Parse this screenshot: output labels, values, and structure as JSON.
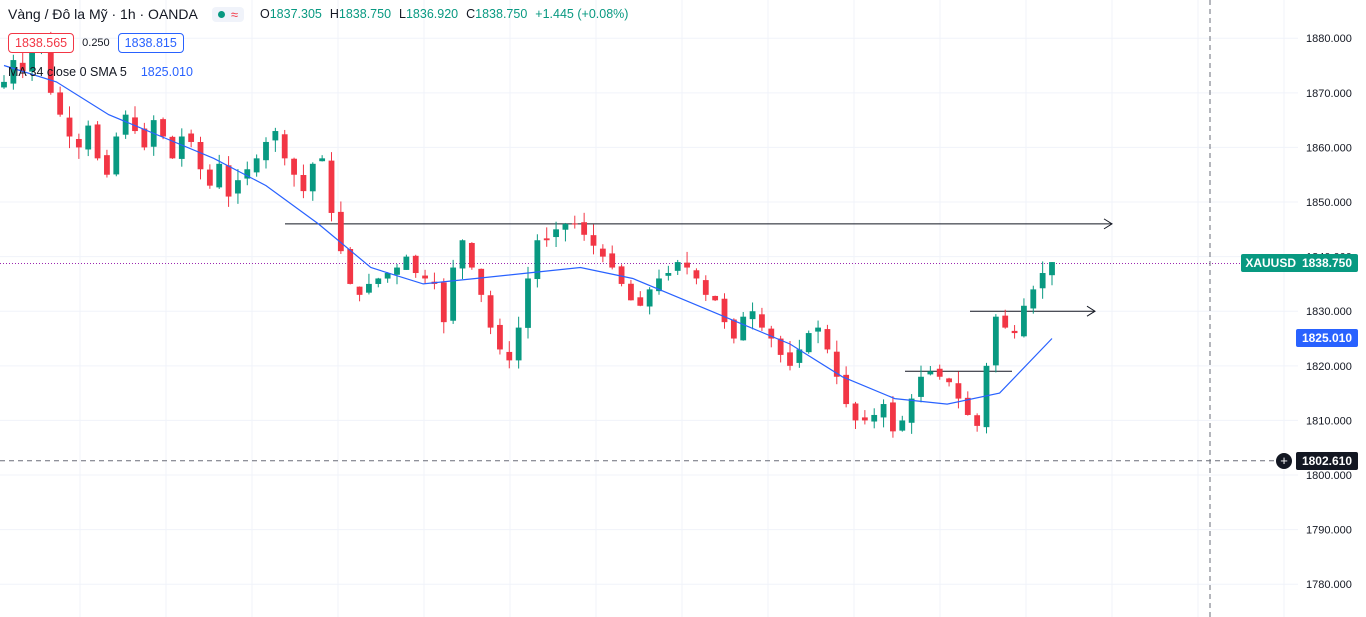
{
  "header": {
    "symbol_title": "Vàng / Đô la Mỹ · 1h · OANDA",
    "ohlc": {
      "open_label": "O",
      "open": "1837.305",
      "high_label": "H",
      "high": "1838.750",
      "low_label": "L",
      "low": "1836.920",
      "close_label": "C",
      "close": "1838.750",
      "change": "+1.445 (+0.08%)"
    },
    "icons": {
      "status": "dot-icon",
      "replay": "wave-icon"
    }
  },
  "prices": {
    "sell": "1838.565",
    "spread": "0.250",
    "buy": "1838.815"
  },
  "indicator": {
    "label": "MA 34 close 0 SMA 5",
    "value": "1825.010"
  },
  "axis_tags": {
    "symbol": "XAUUSD",
    "last_price": "1838.750",
    "ma_value": "1825.010",
    "crosshair_price": "1802.610"
  },
  "colors": {
    "up": "#089981",
    "down": "#f23645",
    "ma": "#2962ff",
    "last_line": "#9c27b0",
    "grid": "#f0f3fa"
  },
  "chart_data": {
    "type": "candlestick",
    "timeframe": "1h",
    "ylim": [
      1774,
      1887
    ],
    "y_ticks": [
      1780,
      1790,
      1800,
      1810,
      1820,
      1830,
      1840,
      1850,
      1860,
      1870,
      1880
    ],
    "candles_approx_close": [
      1872,
      1876,
      1874,
      1878,
      1880,
      1870,
      1866,
      1862,
      1860,
      1864,
      1858,
      1855,
      1862,
      1866,
      1863,
      1860,
      1865,
      1862,
      1858,
      1862,
      1861,
      1856,
      1853,
      1857,
      1851,
      1854,
      1856,
      1858,
      1861,
      1863,
      1858,
      1855,
      1852,
      1857,
      1858,
      1848,
      1841,
      1835,
      1833,
      1835,
      1836,
      1837,
      1838,
      1840,
      1837,
      1836,
      1835,
      1828,
      1838,
      1843,
      1838,
      1833,
      1827,
      1823,
      1821,
      1827,
      1836,
      1843,
      1843,
      1845,
      1846,
      1846,
      1844,
      1842,
      1840,
      1838,
      1835,
      1832,
      1831,
      1834,
      1836,
      1837,
      1839,
      1838,
      1836,
      1833,
      1832,
      1828,
      1825,
      1829,
      1830,
      1827,
      1825,
      1822,
      1820,
      1823,
      1826,
      1827,
      1823,
      1818,
      1813,
      1810,
      1810,
      1811,
      1813,
      1808,
      1810,
      1814,
      1818,
      1819,
      1818,
      1817,
      1814,
      1811,
      1809,
      1820,
      1829,
      1827,
      1826,
      1831,
      1834,
      1837,
      1839
    ],
    "ma": {
      "name": "MA 34 close 0 SMA 5",
      "points": [
        [
          0,
          1875
        ],
        [
          20,
          1872
        ],
        [
          40,
          1866
        ],
        [
          60,
          1862
        ],
        [
          80,
          1858
        ],
        [
          100,
          1853
        ],
        [
          120,
          1846
        ],
        [
          140,
          1838
        ],
        [
          160,
          1835
        ],
        [
          180,
          1836
        ],
        [
          200,
          1837
        ],
        [
          220,
          1838
        ],
        [
          240,
          1836
        ],
        [
          260,
          1832
        ],
        [
          280,
          1828
        ],
        [
          300,
          1824
        ],
        [
          320,
          1818
        ],
        [
          340,
          1814
        ],
        [
          360,
          1813
        ],
        [
          380,
          1815
        ],
        [
          400,
          1825
        ]
      ]
    },
    "horizontal_lines": [
      {
        "price": 1846,
        "style": "arrow"
      },
      {
        "price": 1830,
        "style": "arrow"
      },
      {
        "price": 1819,
        "style": "segment"
      }
    ],
    "last_price_line": 1838.75,
    "crosshair_price": 1802.61
  }
}
